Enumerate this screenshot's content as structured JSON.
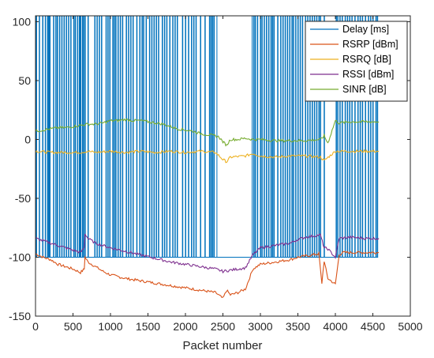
{
  "chart_data": {
    "type": "line",
    "title": "",
    "xlabel": "Packet number",
    "ylabel": "",
    "xlim": [
      0,
      5000
    ],
    "ylim": [
      -150,
      105
    ],
    "xticks": [
      0,
      500,
      1000,
      1500,
      2000,
      2500,
      3000,
      3500,
      4000,
      4500,
      5000
    ],
    "yticks": [
      -150,
      -100,
      -50,
      0,
      50,
      100
    ],
    "grid": false,
    "legend_position": "top-right",
    "series": [
      {
        "name": "Delay [ms]",
        "color": "#0072BD",
        "style": "spikes",
        "baseline": -100,
        "top": 105,
        "x_range": [
          0,
          4570
        ],
        "flat_segments": [
          [
            2420,
            2890
          ]
        ],
        "spikes_x": [
          10,
          50,
          95,
          130,
          160,
          175,
          190,
          240,
          270,
          290,
          320,
          350,
          380,
          410,
          440,
          470,
          510,
          530,
          560,
          585,
          600,
          625,
          640,
          660,
          700,
          790,
          820,
          850,
          880,
          940,
          965,
          990,
          1030,
          1050,
          1070,
          1100,
          1130,
          1160,
          1210,
          1240,
          1270,
          1300,
          1350,
          1390,
          1420,
          1440,
          1475,
          1520,
          1550,
          1580,
          1610,
          1640,
          1690,
          1720,
          1750,
          1790,
          1830,
          1860,
          1890,
          1960,
          2000,
          2040,
          2080,
          2110,
          2140,
          2200,
          2260,
          2320,
          2340,
          2360,
          2380,
          2910,
          2930,
          2960,
          3000,
          3020,
          3050,
          3080,
          3110,
          3140,
          3160,
          3180,
          3230,
          3270,
          3300,
          3330,
          3360,
          3390,
          3420,
          3440,
          3470,
          3500,
          3530,
          3560,
          3600,
          3630,
          3660,
          3690,
          3720,
          3750,
          3780,
          3800,
          3850,
          4010,
          4030,
          4060,
          4090,
          4130,
          4160,
          4190,
          4220,
          4260,
          4300,
          4330,
          4360,
          4400,
          4440,
          4470,
          4500,
          4540,
          4560
        ]
      },
      {
        "name": "RSRP [dBm]",
        "color": "#D95319",
        "x": [
          0,
          100,
          200,
          300,
          400,
          500,
          600,
          650,
          660,
          700,
          800,
          900,
          1000,
          1200,
          1400,
          1600,
          1800,
          2000,
          2200,
          2400,
          2500,
          2550,
          2600,
          2700,
          2800,
          2900,
          3000,
          3200,
          3400,
          3500,
          3600,
          3700,
          3780,
          3800,
          3820,
          3850,
          3900,
          4000,
          4050,
          4100,
          4300,
          4500,
          4580
        ],
        "y": [
          -97,
          -100,
          -102,
          -106,
          -108,
          -110,
          -113,
          -110,
          -100,
          -104,
          -108,
          -112,
          -115,
          -118,
          -120,
          -122,
          -124,
          -126,
          -128,
          -130,
          -135,
          -128,
          -132,
          -130,
          -127,
          -110,
          -106,
          -104,
          -102,
          -100,
          -99,
          -98,
          -97,
          -110,
          -122,
          -103,
          -118,
          -123,
          -98,
          -96,
          -96,
          -96,
          -96
        ]
      },
      {
        "name": "RSRQ [dB]",
        "color": "#EDB120",
        "x": [
          0,
          200,
          400,
          600,
          700,
          800,
          1000,
          1200,
          1400,
          1600,
          1800,
          2000,
          2200,
          2400,
          2500,
          2550,
          2600,
          2800,
          2900,
          3000,
          3200,
          3400,
          3600,
          3800,
          3850,
          4000,
          4200,
          4400,
          4580
        ],
        "y": [
          -10,
          -11,
          -11,
          -11,
          -10,
          -11,
          -10,
          -11,
          -10,
          -11,
          -10,
          -11,
          -10,
          -11,
          -17,
          -19,
          -15,
          -14,
          -12,
          -14,
          -15,
          -14,
          -14,
          -15,
          -18,
          -10,
          -10,
          -10,
          -10
        ]
      },
      {
        "name": "RSSI [dBm]",
        "color": "#7E2F8E",
        "x": [
          0,
          100,
          200,
          300,
          400,
          500,
          600,
          650,
          660,
          700,
          800,
          900,
          1000,
          1200,
          1400,
          1600,
          1800,
          2000,
          2200,
          2400,
          2500,
          2600,
          2700,
          2800,
          2900,
          3000,
          3200,
          3400,
          3500,
          3600,
          3700,
          3800,
          3850,
          3900,
          4000,
          4050,
          4200,
          4400,
          4580
        ],
        "y": [
          -84,
          -86,
          -88,
          -90,
          -92,
          -94,
          -96,
          -92,
          -80,
          -84,
          -88,
          -90,
          -92,
          -95,
          -98,
          -101,
          -104,
          -106,
          -108,
          -110,
          -112,
          -111,
          -110,
          -109,
          -98,
          -92,
          -90,
          -88,
          -85,
          -83,
          -82,
          -81,
          -92,
          -93,
          -100,
          -84,
          -83,
          -84,
          -84
        ]
      },
      {
        "name": "SINR [dB]",
        "color": "#77AC30",
        "x": [
          0,
          100,
          200,
          300,
          400,
          500,
          600,
          700,
          800,
          900,
          1000,
          1100,
          1200,
          1300,
          1400,
          1500,
          1600,
          1700,
          1800,
          1900,
          2000,
          2100,
          2200,
          2300,
          2400,
          2450,
          2500,
          2550,
          2600,
          2700,
          2800,
          2900,
          3000,
          3200,
          3400,
          3600,
          3800,
          3850,
          3900,
          4000,
          4050,
          4200,
          4400,
          4580
        ],
        "y": [
          7,
          8,
          9,
          10,
          10,
          11,
          12,
          13,
          13,
          14,
          16,
          16,
          17,
          16,
          16,
          15,
          14,
          13,
          11,
          9,
          8,
          7,
          5,
          4,
          3,
          2,
          -2,
          -5,
          0,
          0,
          1,
          0,
          0,
          -1,
          -1,
          -1,
          0,
          3,
          -3,
          16,
          14,
          15,
          15,
          15
        ]
      }
    ]
  }
}
